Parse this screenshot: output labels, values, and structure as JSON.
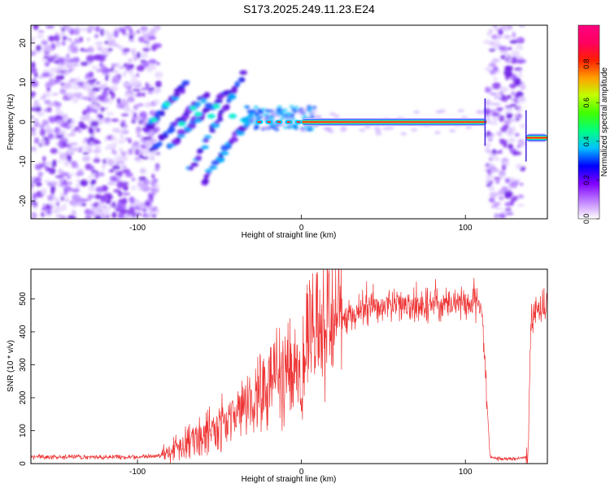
{
  "figure": {
    "title": "S173.2025.249.11.23.E24"
  },
  "chart_data": [
    {
      "type": "heatmap",
      "xlabel": "Height of straight line (km)",
      "ylabel": "Frequency (Hz)",
      "xlim": [
        -165,
        150
      ],
      "ylim": [
        -24.5,
        24.5
      ],
      "xticks": [
        "-100",
        "0",
        "100"
      ],
      "yticks": [
        "-20",
        "-10",
        "0",
        "10",
        "20"
      ],
      "colorbar": {
        "label": "Normalized spectral amplitude",
        "range": [
          0.0,
          1.0
        ],
        "ticks": [
          "0.0",
          "0.2",
          "0.4",
          "0.6",
          "0.8"
        ],
        "colors": [
          "#ffffff",
          "#c080ff",
          "#8000ff",
          "#0000ff",
          "#00c0ff",
          "#00ff80",
          "#40ff00",
          "#c0ff00",
          "#ffa000",
          "#ff2000",
          "#ff0060",
          "#ff0080"
        ]
      },
      "regions": [
        {
          "name": "noise-left",
          "x": [
            -165,
            -87
          ],
          "amplitude": 0.15
        },
        {
          "name": "noise-right",
          "x": [
            113,
            135
          ],
          "amplitude": 0.15
        },
        {
          "name": "carrier",
          "x": [
            0,
            113
          ],
          "frequency": 0,
          "amplitude": 0.95
        },
        {
          "name": "carrier-end",
          "x": [
            137,
            150
          ],
          "frequency": -4,
          "amplitude": 0.95
        }
      ],
      "streaks": [
        {
          "x": [
            -95,
            -70
          ],
          "y": [
            -2,
            10
          ]
        },
        {
          "x": [
            -92,
            -58
          ],
          "y": [
            -7,
            7
          ]
        },
        {
          "x": [
            -80,
            -45
          ],
          "y": [
            -6,
            8
          ]
        },
        {
          "x": [
            -68,
            -35
          ],
          "y": [
            -12,
            12
          ]
        },
        {
          "x": [
            -60,
            -30
          ],
          "y": [
            -15,
            2
          ]
        }
      ]
    },
    {
      "type": "line",
      "xlabel": "Height of straight line (km)",
      "ylabel": "SNR (10 * v/v)",
      "xlim": [
        -165,
        150
      ],
      "ylim": [
        0,
        590
      ],
      "xticks": [
        "-100",
        "0",
        "100"
      ],
      "yticks": [
        "0",
        "100",
        "200",
        "300",
        "400",
        "500"
      ],
      "color": "#ee3333",
      "x": [
        -165,
        -140,
        -120,
        -100,
        -85,
        -80,
        -70,
        -60,
        -50,
        -40,
        -30,
        -20,
        -10,
        0,
        10,
        20,
        30,
        40,
        60,
        80,
        100,
        110,
        115,
        120,
        130,
        138,
        140,
        145,
        150
      ],
      "y": [
        20,
        20,
        20,
        20,
        25,
        40,
        70,
        90,
        120,
        150,
        190,
        240,
        270,
        320,
        380,
        420,
        455,
        470,
        480,
        480,
        480,
        480,
        20,
        15,
        15,
        20,
        430,
        470,
        490
      ]
    }
  ]
}
